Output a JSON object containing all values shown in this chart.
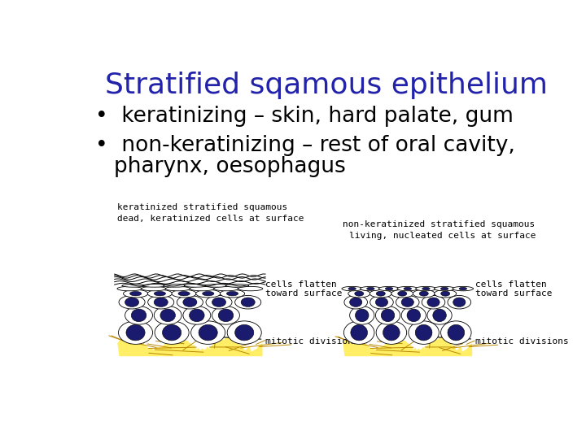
{
  "title": "Stratified sqamous epithelium",
  "title_color": "#2222AA",
  "title_fontsize": 26,
  "bullet1": "keratinizing – skin, hard palate, gum",
  "bullet2_line1": "non-keratinizing – rest of oral cavity,",
  "bullet2_line2": "pharynx, oesophagus",
  "bullet_fontsize": 19,
  "bullet_color": "#000000",
  "label_left_title": "keratinized stratified squamous",
  "label_left_sub": "dead, keratinized cells at surface",
  "label_right_title": "non-keratinized stratified squamous",
  "label_right_sub": "living, nucleated cells at surface",
  "label_fontsize": 8,
  "label_color": "#000000",
  "annotation_fontsize": 8,
  "bg_color": "#ffffff",
  "cell_color_dark": "#1a1a6e",
  "cell_color_white": "#ffffff",
  "cell_outline": "#000000",
  "connective_color": "#ffee66",
  "connective_outline": "#bb8800"
}
